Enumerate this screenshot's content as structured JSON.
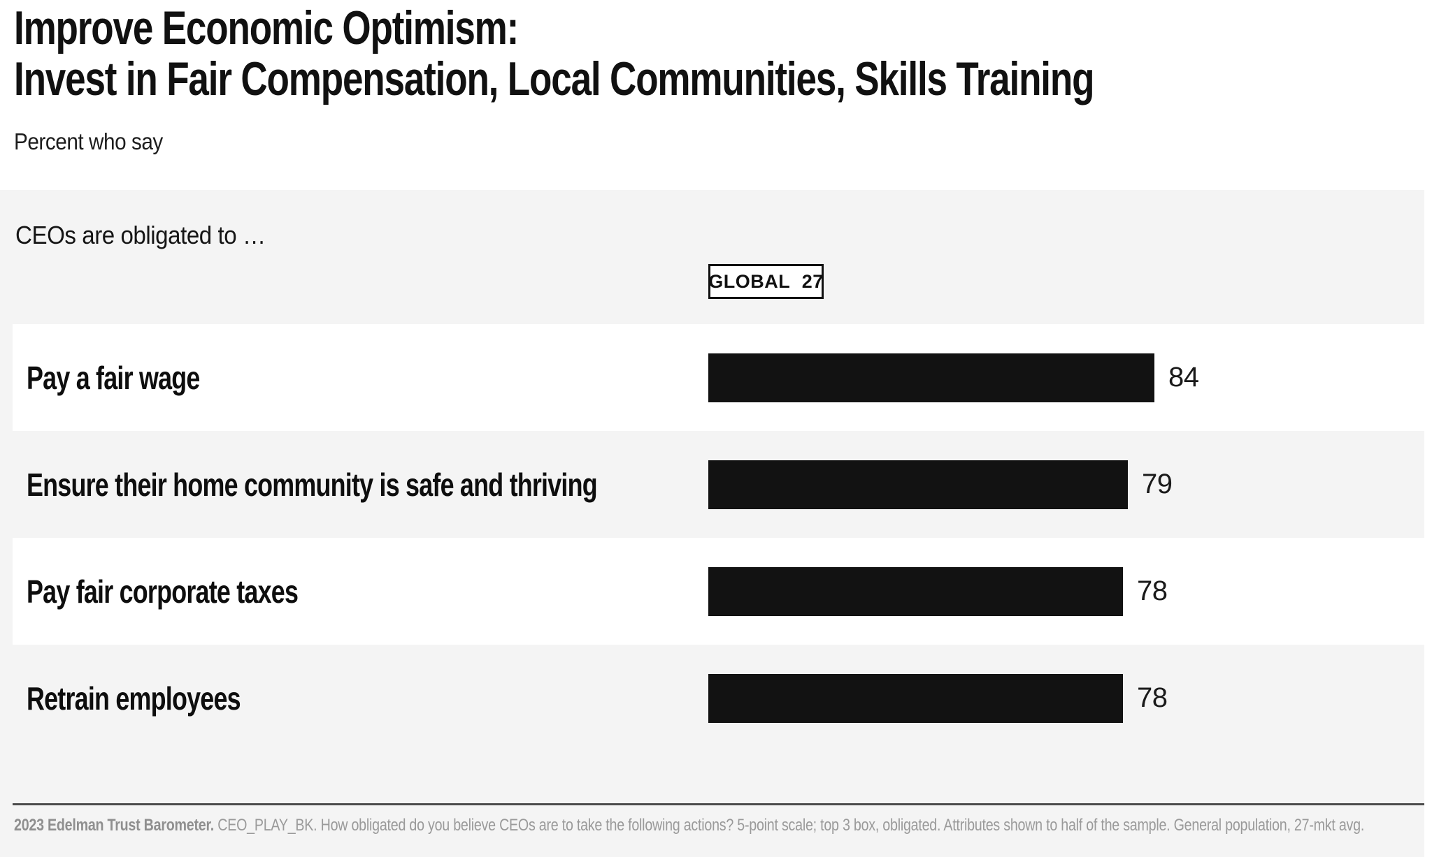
{
  "header": {
    "title_line1": "Improve Economic Optimism:",
    "title_line2": "Invest in Fair Compensation, Local Communities, Skills Training",
    "subtitle": "Percent who say"
  },
  "band": {
    "prompt": "CEOs are obligated to …",
    "global_label": "GLOBAL 27"
  },
  "footer": {
    "source_bold": "2023 Edelman Trust Barometer.",
    "source_rest": " CEO_PLAY_BK. How obligated do you believe CEOs are to take the following actions? 5-point scale; top 3 box, obligated. Attributes shown to half of the sample. General population, 27-mkt avg."
  },
  "colors": {
    "text": "#111111",
    "bar": "#121212",
    "band_bg": "#f4f4f4",
    "row_card_bg": "#ffffff",
    "footer_text": "#9a9a9a",
    "footer_line": "#4b4b4b"
  },
  "chart_data": {
    "type": "bar",
    "orientation": "horizontal",
    "title": "Improve Economic Optimism: Invest in Fair Compensation, Local Communities, Skills Training",
    "subtitle": "Percent who say",
    "group_label": "GLOBAL 27",
    "prompt": "CEOs are obligated to …",
    "categories": [
      "Pay a fair wage",
      "Ensure their home community is safe and thriving",
      "Pay fair corporate taxes",
      "Retrain employees"
    ],
    "values": [
      84,
      79,
      78,
      78
    ],
    "xlim": [
      0,
      100
    ],
    "bar_color": "#121212",
    "value_labels_shown": true,
    "legend": "none",
    "grid": false,
    "footnote": "2023 Edelman Trust Barometer. CEO_PLAY_BK. How obligated do you believe CEOs are to take the following actions? 5-point scale; top 3 box, obligated. Attributes shown to half of the sample. General population, 27-mkt avg."
  }
}
